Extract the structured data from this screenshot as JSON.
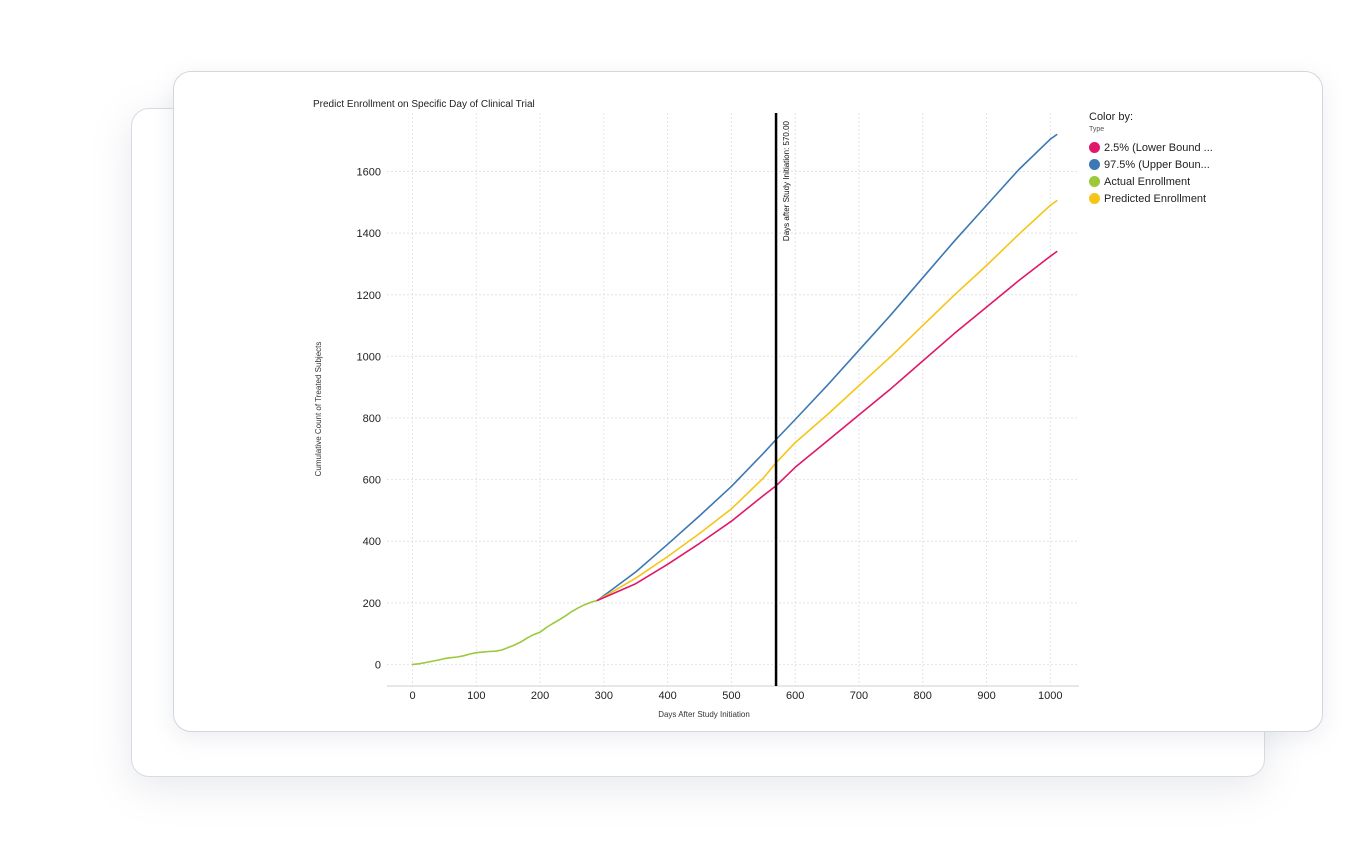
{
  "chart_data": {
    "type": "line",
    "title": "Predict Enrollment on Specific Day of Clinical Trial",
    "xlabel": "Days After Study Initiation",
    "ylabel": "Cumulative Count of Treated Subjects",
    "xlim": [
      -40,
      1045
    ],
    "ylim": [
      -70,
      1790
    ],
    "x_ticks": [
      0,
      100,
      200,
      300,
      400,
      500,
      600,
      700,
      800,
      900,
      1000
    ],
    "y_ticks": [
      0,
      200,
      400,
      600,
      800,
      1000,
      1200,
      1400,
      1600
    ],
    "grid": true,
    "legend_position": "right",
    "legend": {
      "title": "Color by:",
      "subtitle": "Type",
      "items": [
        {
          "label": "2.5% (Lower Bound ...",
          "color": "#e0176a"
        },
        {
          "label": "97.5% (Upper Boun...",
          "color": "#3b78b4"
        },
        {
          "label": "Actual Enrollment",
          "color": "#9bc93a"
        },
        {
          "label": "Predicted Enrollment",
          "color": "#f5c518"
        }
      ]
    },
    "reference_line": {
      "x": 570,
      "label": "Days after Study Initiation: 570.00",
      "color": "#000000"
    },
    "series": [
      {
        "name": "Actual Enrollment",
        "color": "#9bc93a",
        "x": [
          0,
          10,
          20,
          30,
          40,
          50,
          60,
          70,
          80,
          90,
          100,
          110,
          120,
          130,
          140,
          150,
          160,
          170,
          180,
          190,
          200,
          210,
          220,
          230,
          240,
          250,
          260,
          270,
          280,
          290
        ],
        "y": [
          0,
          2,
          6,
          10,
          14,
          19,
          22,
          24,
          28,
          34,
          38,
          40,
          42,
          43,
          47,
          55,
          63,
          73,
          86,
          97,
          105,
          120,
          133,
          145,
          158,
          172,
          184,
          194,
          202,
          208
        ]
      },
      {
        "name": "97.5% (Upper Boun...",
        "color": "#3b78b4",
        "x": [
          290,
          350,
          400,
          450,
          500,
          550,
          570,
          600,
          650,
          700,
          750,
          800,
          850,
          900,
          950,
          1000,
          1010
        ],
        "y": [
          208,
          300,
          390,
          482,
          578,
          685,
          730,
          795,
          905,
          1020,
          1135,
          1255,
          1375,
          1490,
          1605,
          1705,
          1720
        ]
      },
      {
        "name": "Predicted Enrollment",
        "color": "#f5c518",
        "x": [
          290,
          350,
          400,
          450,
          500,
          550,
          570,
          600,
          650,
          700,
          750,
          800,
          850,
          900,
          950,
          1000,
          1010
        ],
        "y": [
          208,
          280,
          350,
          425,
          505,
          605,
          655,
          720,
          810,
          905,
          1000,
          1100,
          1200,
          1295,
          1395,
          1490,
          1505
        ]
      },
      {
        "name": "2.5% (Lower Bound ...",
        "color": "#e0176a",
        "x": [
          290,
          350,
          400,
          450,
          500,
          550,
          570,
          600,
          650,
          700,
          750,
          800,
          850,
          900,
          950,
          1000,
          1010
        ],
        "y": [
          208,
          262,
          325,
          393,
          465,
          548,
          580,
          640,
          725,
          810,
          895,
          985,
          1075,
          1160,
          1245,
          1325,
          1340
        ]
      }
    ]
  }
}
